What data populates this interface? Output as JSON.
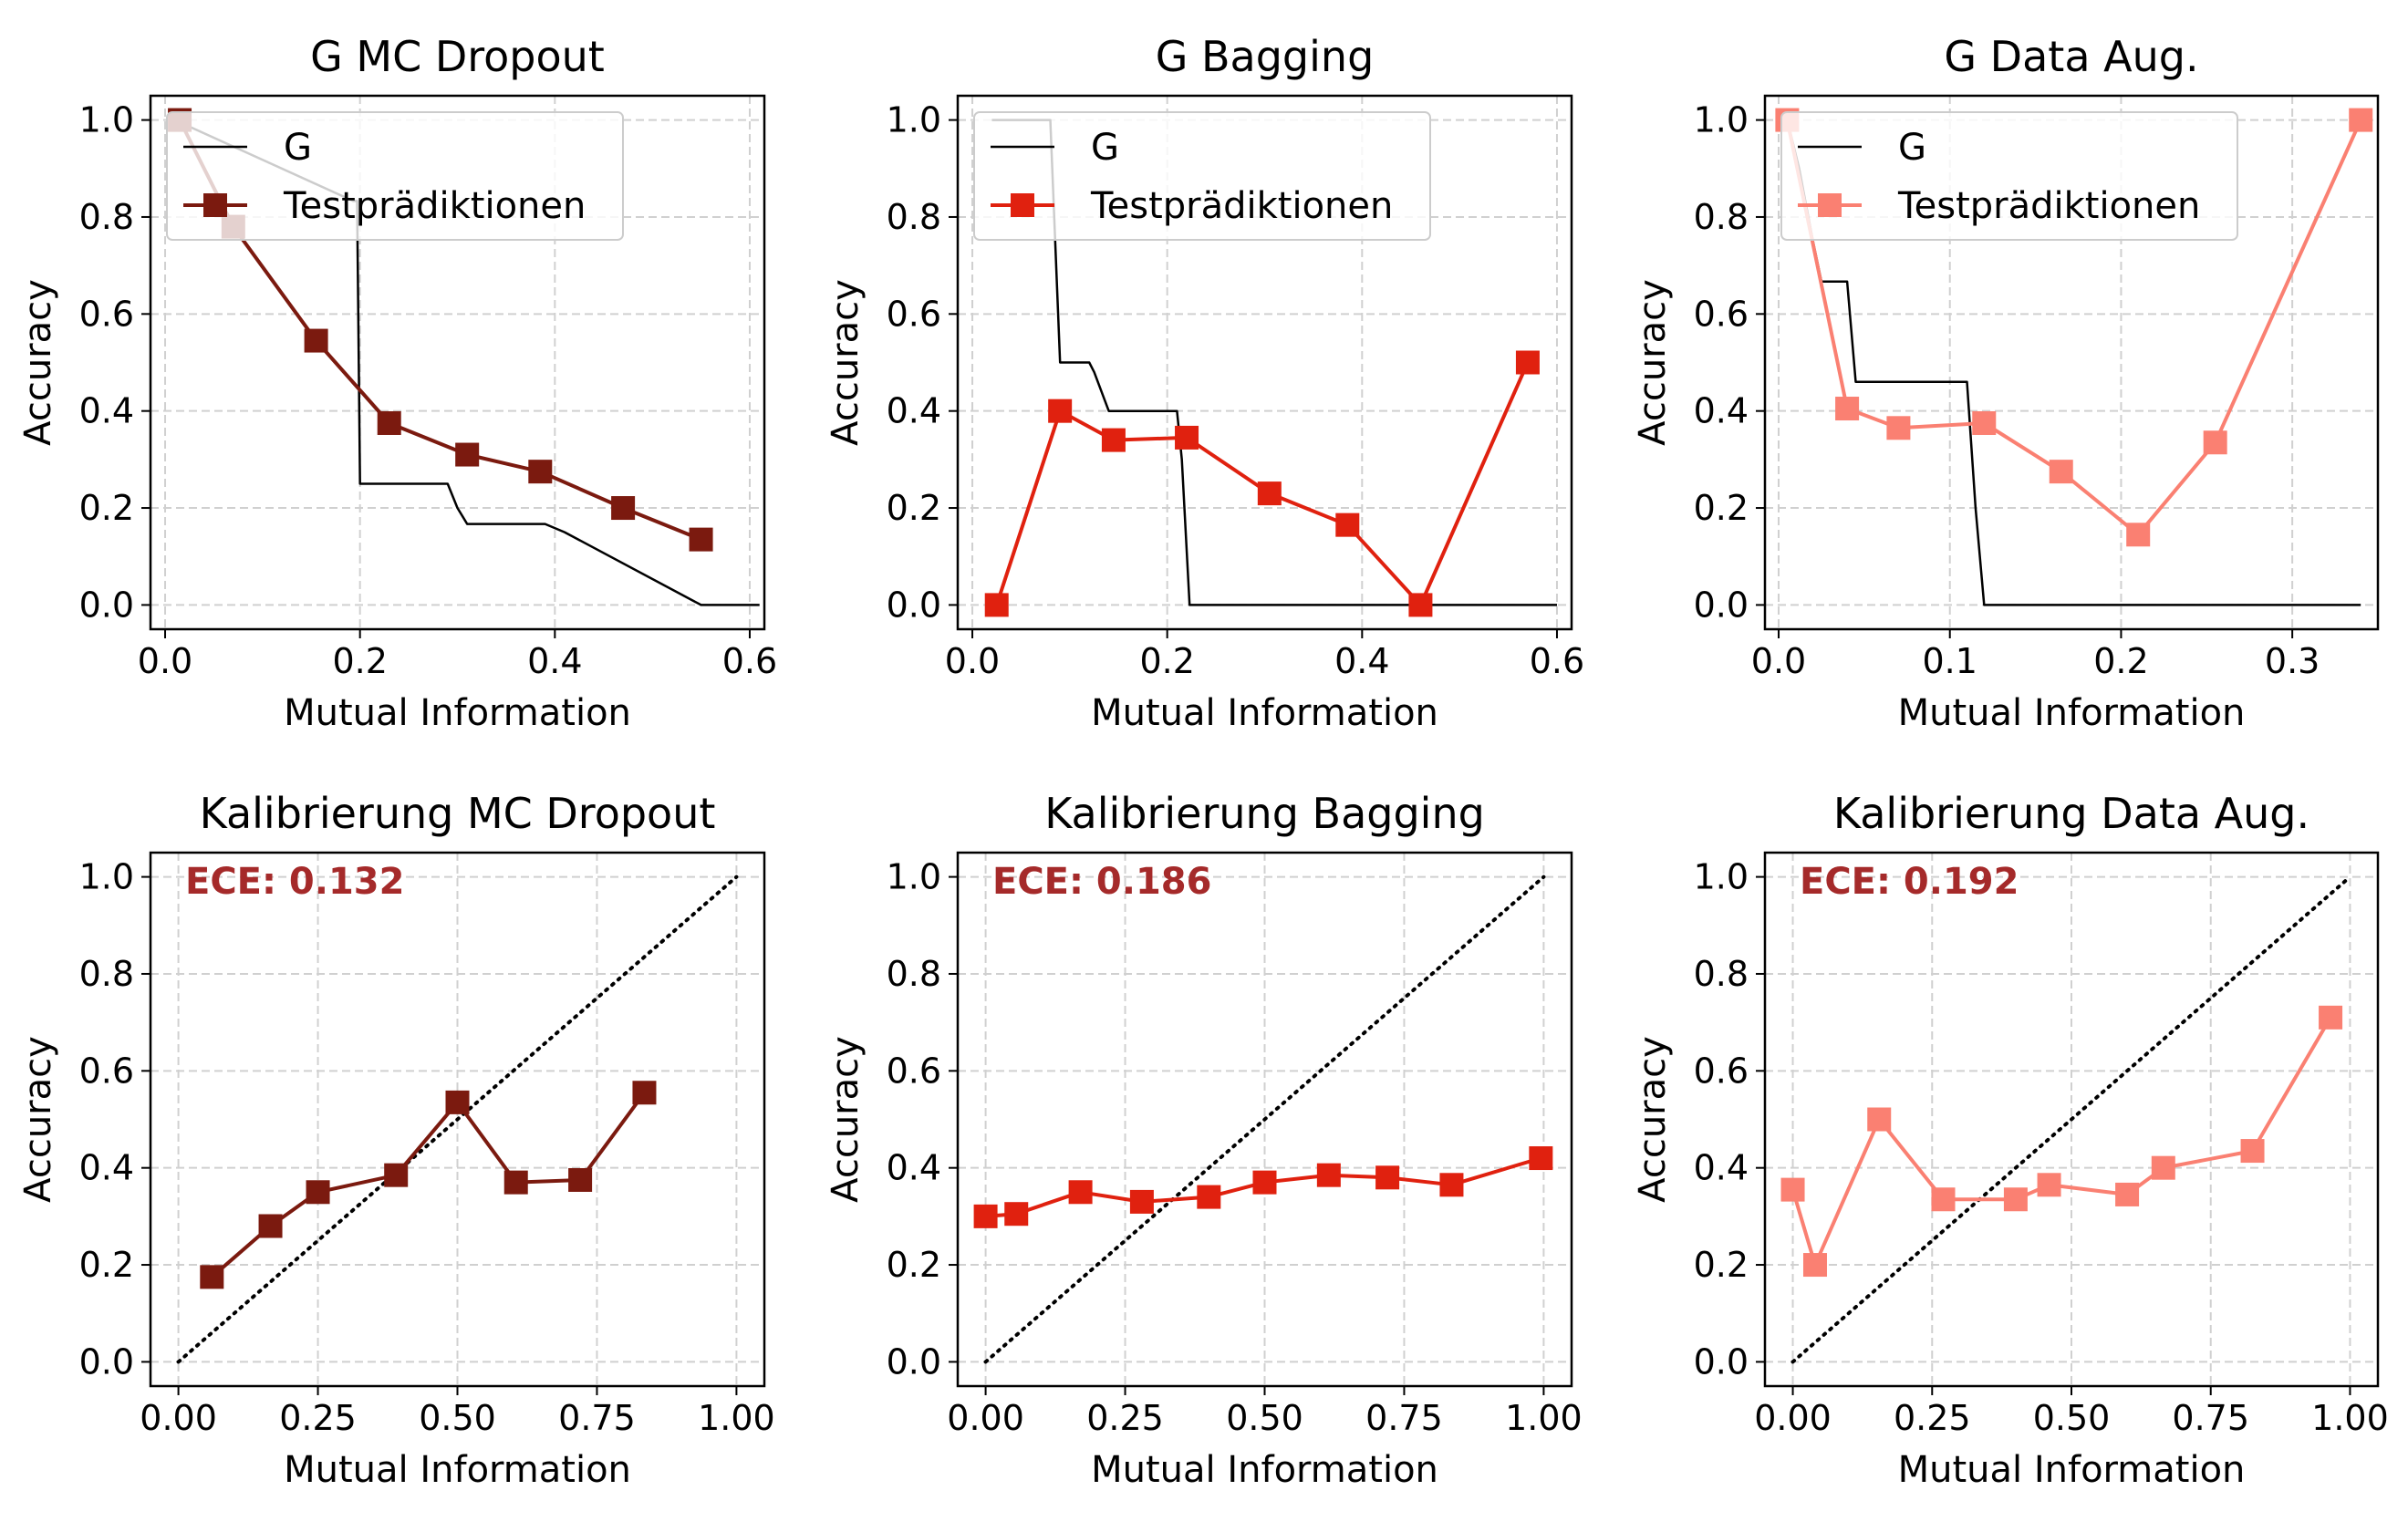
{
  "figure": {
    "background": "#ffffff"
  },
  "chart_data": [
    {
      "type": "line",
      "title": "G MC Dropout",
      "xlabel": "Mutual Information",
      "ylabel": "Accuracy",
      "xlim": [
        -0.015,
        0.615
      ],
      "ylim": [
        -0.05,
        1.05
      ],
      "xticks": [
        0.0,
        0.2,
        0.4,
        0.6
      ],
      "xtick_labels": [
        "0.0",
        "0.2",
        "0.4",
        "0.6"
      ],
      "yticks": [
        0.0,
        0.2,
        0.4,
        0.6,
        0.8,
        1.0
      ],
      "ytick_labels": [
        "0.0",
        "0.2",
        "0.4",
        "0.6",
        "0.8",
        "1.0"
      ],
      "grid": true,
      "legend": "top-right",
      "series": [
        {
          "name": "G",
          "color": "#000000",
          "marker": "none",
          "x": [
            0.01,
            0.193,
            0.197,
            0.2,
            0.29,
            0.3,
            0.31,
            0.39,
            0.41,
            0.55,
            0.61
          ],
          "y": [
            1.0,
            0.833,
            0.833,
            0.25,
            0.25,
            0.2,
            0.167,
            0.167,
            0.15,
            0.0,
            0.0
          ]
        },
        {
          "name": "Testprädiktionen",
          "color": "#7b1a0f",
          "marker": "square",
          "x": [
            0.015,
            0.07,
            0.155,
            0.23,
            0.31,
            0.385,
            0.47,
            0.55
          ],
          "y": [
            1.0,
            0.78,
            0.545,
            0.375,
            0.31,
            0.275,
            0.2,
            0.135
          ]
        }
      ]
    },
    {
      "type": "line",
      "title": "G Bagging",
      "xlabel": "Mutual Information",
      "ylabel": "Accuracy",
      "xlim": [
        -0.015,
        0.615
      ],
      "ylim": [
        -0.05,
        1.05
      ],
      "xticks": [
        0.0,
        0.2,
        0.4,
        0.6
      ],
      "xtick_labels": [
        "0.0",
        "0.2",
        "0.4",
        "0.6"
      ],
      "yticks": [
        0.0,
        0.2,
        0.4,
        0.6,
        0.8,
        1.0
      ],
      "ytick_labels": [
        "0.0",
        "0.2",
        "0.4",
        "0.6",
        "0.8",
        "1.0"
      ],
      "grid": true,
      "legend": "top-right",
      "series": [
        {
          "name": "G",
          "color": "#000000",
          "marker": "none",
          "x": [
            0.02,
            0.08,
            0.09,
            0.12,
            0.125,
            0.14,
            0.21,
            0.215,
            0.223,
            0.6
          ],
          "y": [
            1.0,
            1.0,
            0.5,
            0.5,
            0.48,
            0.4,
            0.4,
            0.3,
            0.0,
            0.0
          ]
        },
        {
          "name": "Testprädiktionen",
          "color": "#e0210f",
          "marker": "square",
          "x": [
            0.025,
            0.09,
            0.145,
            0.22,
            0.305,
            0.385,
            0.46,
            0.57
          ],
          "y": [
            0.0,
            0.4,
            0.34,
            0.345,
            0.23,
            0.165,
            0.0,
            0.5
          ]
        }
      ]
    },
    {
      "type": "line",
      "title": "G Data Aug.",
      "xlabel": "Mutual Information",
      "ylabel": "Accuracy",
      "xlim": [
        -0.008,
        0.35
      ],
      "ylim": [
        -0.05,
        1.05
      ],
      "xticks": [
        0.0,
        0.1,
        0.2,
        0.3
      ],
      "xtick_labels": [
        "0.0",
        "0.1",
        "0.2",
        "0.3"
      ],
      "yticks": [
        0.0,
        0.2,
        0.4,
        0.6,
        0.8,
        1.0
      ],
      "ytick_labels": [
        "0.0",
        "0.2",
        "0.4",
        "0.6",
        "0.8",
        "1.0"
      ],
      "grid": true,
      "legend": "top-right",
      "series": [
        {
          "name": "G",
          "color": "#000000",
          "marker": "none",
          "x": [
            0.005,
            0.012,
            0.02,
            0.025,
            0.04,
            0.045,
            0.11,
            0.115,
            0.12,
            0.34
          ],
          "y": [
            1.0,
            0.9,
            0.75,
            0.667,
            0.667,
            0.46,
            0.46,
            0.2,
            0.0,
            0.0
          ]
        },
        {
          "name": "Testprädiktionen",
          "color": "#fa8072",
          "marker": "square",
          "x": [
            0.005,
            0.04,
            0.07,
            0.12,
            0.165,
            0.21,
            0.255,
            0.34
          ],
          "y": [
            1.0,
            0.405,
            0.365,
            0.375,
            0.275,
            0.145,
            0.335,
            1.0
          ]
        }
      ]
    },
    {
      "type": "line",
      "title": "Kalibrierung MC Dropout",
      "xlabel": "Mutual Information",
      "ylabel": "Accuracy",
      "xlim": [
        -0.05,
        1.05
      ],
      "ylim": [
        -0.05,
        1.05
      ],
      "xticks": [
        0.0,
        0.25,
        0.5,
        0.75,
        1.0
      ],
      "xtick_labels": [
        "0.00",
        "0.25",
        "0.50",
        "0.75",
        "1.00"
      ],
      "yticks": [
        0.0,
        0.2,
        0.4,
        0.6,
        0.8,
        1.0
      ],
      "ytick_labels": [
        "0.0",
        "0.2",
        "0.4",
        "0.6",
        "0.8",
        "1.0"
      ],
      "grid": true,
      "annotation": "ECE: 0.132",
      "annotation_color": "#a52a2a",
      "diagonal": {
        "x": [
          0,
          1
        ],
        "y": [
          0,
          1
        ],
        "color": "#000000",
        "style": "dotted"
      },
      "series": [
        {
          "color": "#7b1a0f",
          "marker": "square",
          "x": [
            0.06,
            0.165,
            0.25,
            0.39,
            0.5,
            0.605,
            0.72,
            0.835
          ],
          "y": [
            0.175,
            0.28,
            0.35,
            0.385,
            0.535,
            0.37,
            0.375,
            0.555
          ]
        }
      ]
    },
    {
      "type": "line",
      "title": "Kalibrierung Bagging",
      "xlabel": "Mutual Information",
      "ylabel": "Accuracy",
      "xlim": [
        -0.05,
        1.05
      ],
      "ylim": [
        -0.05,
        1.05
      ],
      "xticks": [
        0.0,
        0.25,
        0.5,
        0.75,
        1.0
      ],
      "xtick_labels": [
        "0.00",
        "0.25",
        "0.50",
        "0.75",
        "1.00"
      ],
      "yticks": [
        0.0,
        0.2,
        0.4,
        0.6,
        0.8,
        1.0
      ],
      "ytick_labels": [
        "0.0",
        "0.2",
        "0.4",
        "0.6",
        "0.8",
        "1.0"
      ],
      "grid": true,
      "annotation": "ECE: 0.186",
      "annotation_color": "#a52a2a",
      "diagonal": {
        "x": [
          0,
          1
        ],
        "y": [
          0,
          1
        ],
        "color": "#000000",
        "style": "dotted"
      },
      "series": [
        {
          "color": "#e0210f",
          "marker": "square",
          "x": [
            0.0,
            0.055,
            0.17,
            0.28,
            0.4,
            0.5,
            0.615,
            0.72,
            0.835,
            0.995
          ],
          "y": [
            0.3,
            0.305,
            0.35,
            0.33,
            0.34,
            0.37,
            0.385,
            0.38,
            0.365,
            0.42
          ]
        }
      ]
    },
    {
      "type": "line",
      "title": "Kalibrierung Data Aug.",
      "xlabel": "Mutual Information",
      "ylabel": "Accuracy",
      "xlim": [
        -0.05,
        1.05
      ],
      "ylim": [
        -0.05,
        1.05
      ],
      "xticks": [
        0.0,
        0.25,
        0.5,
        0.75,
        1.0
      ],
      "xtick_labels": [
        "0.00",
        "0.25",
        "0.50",
        "0.75",
        "1.00"
      ],
      "yticks": [
        0.0,
        0.2,
        0.4,
        0.6,
        0.8,
        1.0
      ],
      "ytick_labels": [
        "0.0",
        "0.2",
        "0.4",
        "0.6",
        "0.8",
        "1.0"
      ],
      "grid": true,
      "annotation": "ECE: 0.192",
      "annotation_color": "#a52a2a",
      "diagonal": {
        "x": [
          0,
          1
        ],
        "y": [
          0,
          1
        ],
        "color": "#000000",
        "style": "dotted"
      },
      "series": [
        {
          "color": "#fa8072",
          "marker": "square",
          "x": [
            0.0,
            0.04,
            0.155,
            0.27,
            0.4,
            0.46,
            0.6,
            0.665,
            0.825,
            0.965
          ],
          "y": [
            0.355,
            0.2,
            0.5,
            0.335,
            0.335,
            0.365,
            0.345,
            0.4,
            0.435,
            0.71
          ]
        }
      ]
    }
  ]
}
